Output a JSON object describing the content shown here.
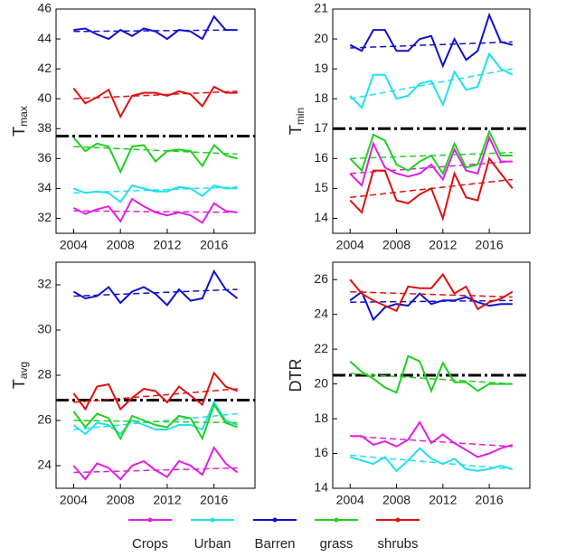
{
  "chart_data": [
    {
      "type": "line",
      "ylabel": "T",
      "ylabel_sub": "max",
      "x": [
        2004,
        2005,
        2006,
        2007,
        2008,
        2009,
        2010,
        2011,
        2012,
        2013,
        2014,
        2015,
        2016,
        2017,
        2018
      ],
      "xlim": [
        2002.5,
        2019.5
      ],
      "xticks": [
        2004,
        2008,
        2012,
        2016
      ],
      "ylim": [
        31,
        46
      ],
      "yticks": [
        32,
        34,
        36,
        38,
        40,
        42,
        44,
        46
      ],
      "reference_line": 37.5,
      "series": [
        {
          "name": "Crops",
          "color": "#e020e0",
          "values": [
            32.7,
            32.3,
            32.6,
            32.8,
            31.8,
            33.3,
            32.8,
            32.4,
            32.2,
            32.4,
            32.2,
            31.7,
            33.0,
            32.5,
            32.4
          ],
          "trend": [
            32.5,
            32.4
          ]
        },
        {
          "name": "Urban",
          "color": "#20e0f0",
          "values": [
            34.0,
            33.7,
            33.8,
            33.7,
            33.1,
            34.2,
            34.0,
            33.8,
            33.8,
            34.1,
            34.0,
            33.5,
            34.2,
            34.0,
            34.0
          ],
          "trend": [
            33.7,
            34.1
          ]
        },
        {
          "name": "Barren",
          "color": "#1010d0",
          "values": [
            44.6,
            44.7,
            44.3,
            44.0,
            44.6,
            44.2,
            44.7,
            44.5,
            44.0,
            44.6,
            44.5,
            44.0,
            45.5,
            44.6,
            44.6
          ],
          "trend": [
            44.5,
            44.6
          ]
        },
        {
          "name": "grass",
          "color": "#20d020",
          "values": [
            37.4,
            36.5,
            37.0,
            36.8,
            35.1,
            36.8,
            36.9,
            35.8,
            36.5,
            36.6,
            36.5,
            35.5,
            36.9,
            36.2,
            36.0
          ],
          "trend": [
            36.8,
            36.3
          ]
        },
        {
          "name": "shrubs",
          "color": "#e01010",
          "values": [
            40.7,
            39.7,
            40.1,
            40.6,
            38.8,
            40.2,
            40.4,
            40.4,
            40.2,
            40.5,
            40.3,
            39.5,
            40.8,
            40.4,
            40.4
          ],
          "trend": [
            40.0,
            40.5
          ]
        }
      ]
    },
    {
      "type": "line",
      "ylabel": "T",
      "ylabel_sub": "min",
      "x": [
        2004,
        2005,
        2006,
        2007,
        2008,
        2009,
        2010,
        2011,
        2012,
        2013,
        2014,
        2015,
        2016,
        2017,
        2018
      ],
      "xlim": [
        2002.5,
        2019.5
      ],
      "xticks": [
        2004,
        2008,
        2012,
        2016
      ],
      "ylim": [
        13.5,
        21
      ],
      "yticks": [
        14,
        15,
        16,
        17,
        18,
        19,
        20,
        21
      ],
      "reference_line": 17.0,
      "series": [
        {
          "name": "Crops",
          "color": "#e020e0",
          "values": [
            15.5,
            15.1,
            16.5,
            15.7,
            15.5,
            15.4,
            15.5,
            15.8,
            15.3,
            16.3,
            15.6,
            15.5,
            16.7,
            15.9,
            15.9
          ],
          "trend": [
            15.5,
            15.9
          ]
        },
        {
          "name": "Urban",
          "color": "#20e0f0",
          "values": [
            18.1,
            17.7,
            18.8,
            18.8,
            18.0,
            18.1,
            18.5,
            18.6,
            17.8,
            18.9,
            18.3,
            18.4,
            19.5,
            19.0,
            18.8
          ],
          "trend": [
            18.0,
            19.0
          ]
        },
        {
          "name": "Barren",
          "color": "#1010d0",
          "values": [
            19.8,
            19.6,
            20.3,
            20.3,
            19.6,
            19.6,
            20.0,
            20.1,
            19.1,
            20.0,
            19.3,
            19.6,
            20.8,
            19.9,
            19.8
          ],
          "trend": [
            19.7,
            19.9
          ]
        },
        {
          "name": "grass",
          "color": "#20d020",
          "values": [
            16.0,
            15.6,
            16.8,
            16.6,
            15.8,
            15.6,
            15.9,
            16.1,
            15.5,
            16.5,
            15.7,
            15.8,
            16.9,
            16.1,
            16.1
          ],
          "trend": [
            16.0,
            16.2
          ]
        },
        {
          "name": "shrubs",
          "color": "#e01010",
          "values": [
            14.6,
            14.2,
            15.6,
            15.6,
            14.6,
            14.5,
            14.8,
            15.0,
            14.0,
            15.5,
            14.7,
            14.6,
            16.0,
            15.5,
            15.0
          ],
          "trend": [
            14.7,
            15.3
          ]
        }
      ]
    },
    {
      "type": "line",
      "ylabel": "T",
      "ylabel_sub": "avg",
      "x": [
        2004,
        2005,
        2006,
        2007,
        2008,
        2009,
        2010,
        2011,
        2012,
        2013,
        2014,
        2015,
        2016,
        2017,
        2018
      ],
      "xlim": [
        2002.5,
        2019.5
      ],
      "xticks": [
        2004,
        2008,
        2012,
        2016
      ],
      "ylim": [
        23,
        33
      ],
      "yticks": [
        24,
        26,
        28,
        30,
        32
      ],
      "reference_line": 26.9,
      "series": [
        {
          "name": "Crops",
          "color": "#e020e0",
          "values": [
            24.0,
            23.4,
            24.1,
            23.9,
            23.4,
            24.0,
            24.2,
            23.8,
            23.5,
            24.2,
            24.0,
            23.6,
            24.8,
            24.1,
            23.7
          ],
          "trend": [
            23.7,
            23.9
          ]
        },
        {
          "name": "Urban",
          "color": "#20e0f0",
          "values": [
            25.8,
            25.4,
            25.9,
            25.8,
            25.4,
            26.0,
            25.8,
            25.6,
            25.6,
            25.8,
            25.8,
            25.6,
            26.8,
            26.0,
            25.8
          ],
          "trend": [
            25.6,
            26.3
          ]
        },
        {
          "name": "Barren",
          "color": "#1010d0",
          "values": [
            31.7,
            31.4,
            31.5,
            31.9,
            31.2,
            31.7,
            31.9,
            31.6,
            31.1,
            31.8,
            31.3,
            31.4,
            32.6,
            31.8,
            31.4
          ],
          "trend": [
            31.5,
            31.8
          ]
        },
        {
          "name": "grass",
          "color": "#20d020",
          "values": [
            26.4,
            25.7,
            26.3,
            26.1,
            25.2,
            26.2,
            26.0,
            25.8,
            25.7,
            26.2,
            26.1,
            25.2,
            26.7,
            25.9,
            25.7
          ],
          "trend": [
            26.0,
            25.9
          ]
        },
        {
          "name": "shrubs",
          "color": "#e01010",
          "values": [
            27.2,
            26.5,
            27.5,
            27.6,
            26.5,
            27.0,
            27.4,
            27.3,
            26.8,
            27.5,
            27.1,
            26.7,
            28.1,
            27.5,
            27.3
          ],
          "trend": [
            26.8,
            27.4
          ]
        }
      ]
    },
    {
      "type": "line",
      "ylabel": "DTR",
      "x": [
        2004,
        2005,
        2006,
        2007,
        2008,
        2009,
        2010,
        2011,
        2012,
        2013,
        2014,
        2015,
        2016,
        2017,
        2018
      ],
      "xlim": [
        2002.5,
        2019.5
      ],
      "xticks": [
        2004,
        2008,
        2012,
        2016
      ],
      "ylim": [
        14,
        27
      ],
      "yticks": [
        14,
        16,
        18,
        20,
        22,
        24,
        26
      ],
      "reference_line": 20.5,
      "series": [
        {
          "name": "Crops",
          "color": "#e020e0",
          "values": [
            17.0,
            17.0,
            16.5,
            16.7,
            16.4,
            16.8,
            17.8,
            16.6,
            17.1,
            16.6,
            16.2,
            15.8,
            16.0,
            16.3,
            16.5
          ],
          "trend": [
            17.0,
            16.4
          ]
        },
        {
          "name": "Urban",
          "color": "#20e0f0",
          "values": [
            15.8,
            15.6,
            15.4,
            15.8,
            15.0,
            15.6,
            16.3,
            15.7,
            15.4,
            15.7,
            15.1,
            15.0,
            15.1,
            15.3,
            15.1
          ],
          "trend": [
            15.9,
            15.1
          ]
        },
        {
          "name": "Barren",
          "color": "#1010d0",
          "values": [
            24.8,
            25.3,
            23.7,
            24.4,
            24.6,
            24.5,
            25.2,
            24.6,
            24.8,
            24.8,
            25.0,
            24.7,
            24.5,
            24.6,
            24.6
          ],
          "trend": [
            24.7,
            24.8
          ]
        },
        {
          "name": "grass",
          "color": "#20d020",
          "values": [
            21.3,
            20.7,
            20.3,
            19.8,
            19.5,
            21.6,
            21.3,
            19.6,
            21.2,
            20.1,
            20.1,
            19.6,
            20.0,
            20.0,
            20.0
          ],
          "trend": [
            20.6,
            20.0
          ]
        },
        {
          "name": "shrubs",
          "color": "#e01010",
          "values": [
            26.0,
            25.2,
            24.8,
            24.5,
            24.2,
            25.6,
            25.5,
            25.5,
            26.3,
            25.2,
            25.6,
            24.3,
            24.7,
            24.9,
            25.3
          ],
          "trend": [
            25.3,
            25.0
          ]
        }
      ]
    }
  ]
}
